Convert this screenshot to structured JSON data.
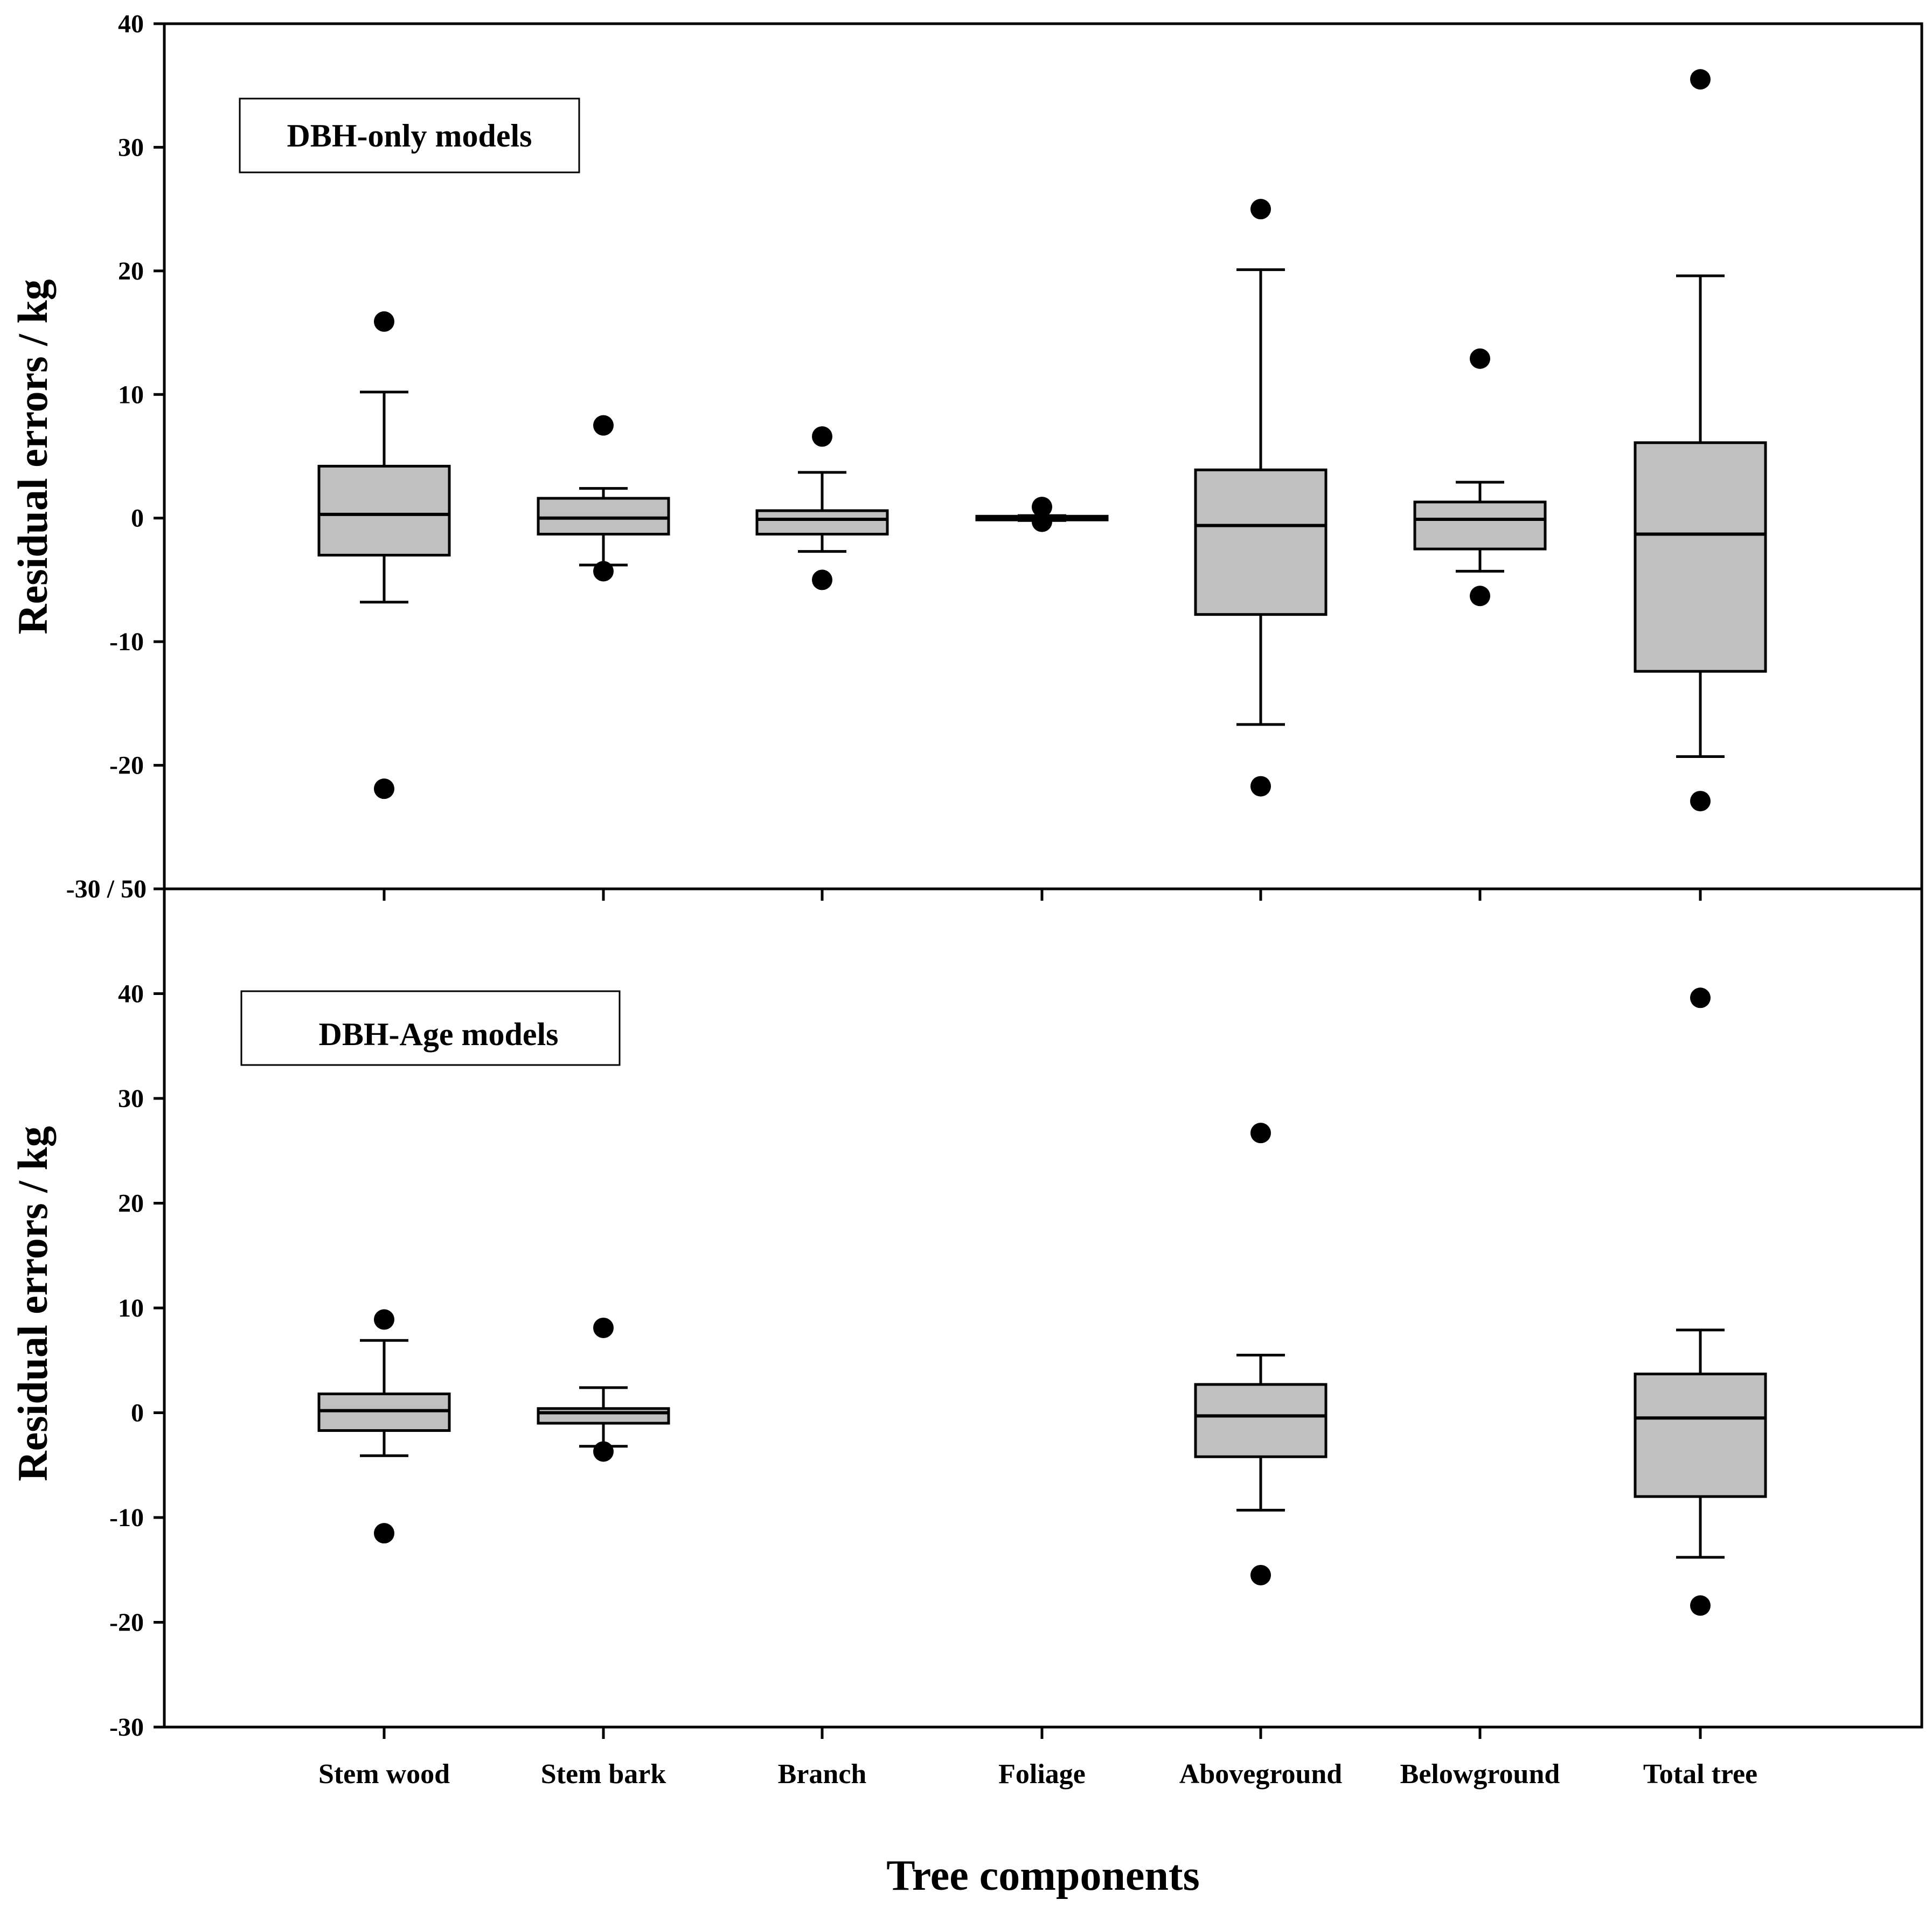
{
  "chart_data": [
    {
      "type": "box",
      "panel": "top",
      "label": "DBH-only models",
      "ylabel": "Residual errors / kg",
      "ylim": [
        -30,
        40
      ],
      "yticks": [
        "40",
        "30",
        "20",
        "10",
        "0",
        "-10",
        "-20"
      ],
      "shared_boundary_label": "-30 / 50",
      "categories": [
        "Stem wood",
        "Stem bark",
        "Branch",
        "Foliage",
        "Aboveground",
        "Belowground",
        "Total tree"
      ],
      "boxes": [
        {
          "category": "Stem wood",
          "q1": -3.0,
          "median": 0.3,
          "q3": 4.2,
          "whisker_low": -6.8,
          "whisker_high": 10.2,
          "outliers": [
            15.9,
            -21.9
          ]
        },
        {
          "category": "Stem bark",
          "q1": -1.3,
          "median": 0.0,
          "q3": 1.6,
          "whisker_low": -3.8,
          "whisker_high": 2.4,
          "outliers": [
            7.5,
            -4.3
          ]
        },
        {
          "category": "Branch",
          "q1": -1.3,
          "median": -0.1,
          "q3": 0.6,
          "whisker_low": -2.7,
          "whisker_high": 3.7,
          "outliers": [
            6.6,
            -5.0
          ]
        },
        {
          "category": "Foliage",
          "q1": -0.15,
          "median": 0.0,
          "q3": 0.15,
          "whisker_low": -0.2,
          "whisker_high": 0.2,
          "outliers": [
            0.9,
            -0.3
          ]
        },
        {
          "category": "Aboveground",
          "q1": -7.8,
          "median": -0.6,
          "q3": 3.9,
          "whisker_low": -16.7,
          "whisker_high": 20.1,
          "outliers": [
            25.0,
            -21.7
          ]
        },
        {
          "category": "Belowground",
          "q1": -2.5,
          "median": -0.1,
          "q3": 1.3,
          "whisker_low": -4.3,
          "whisker_high": 2.9,
          "outliers": [
            12.9,
            -6.3
          ]
        },
        {
          "category": "Total tree",
          "q1": -12.4,
          "median": -1.3,
          "q3": 6.1,
          "whisker_low": -19.3,
          "whisker_high": 19.6,
          "outliers": [
            35.5,
            -22.9
          ]
        }
      ]
    },
    {
      "type": "box",
      "panel": "bottom",
      "label": "DBH-Age models",
      "ylabel": "Residual errors / kg",
      "ylim": [
        -30,
        50
      ],
      "yticks": [
        "40",
        "30",
        "20",
        "10",
        "0",
        "-10",
        "-20",
        "-30"
      ],
      "categories": [
        "Stem wood",
        "Stem bark",
        "Branch",
        "Foliage",
        "Aboveground",
        "Belowground",
        "Total tree"
      ],
      "boxes": [
        {
          "category": "Stem wood",
          "q1": -1.7,
          "median": 0.2,
          "q3": 1.8,
          "whisker_low": -4.1,
          "whisker_high": 6.9,
          "outliers": [
            8.9,
            -11.5
          ]
        },
        {
          "category": "Stem bark",
          "q1": -1.0,
          "median": 0.0,
          "q3": 0.4,
          "whisker_low": -3.2,
          "whisker_high": 2.4,
          "outliers": [
            8.1,
            -3.7
          ]
        },
        {
          "category": "Aboveground",
          "q1": -4.2,
          "median": -0.3,
          "q3": 2.7,
          "whisker_low": -9.3,
          "whisker_high": 5.5,
          "outliers": [
            26.7,
            -15.5
          ]
        },
        {
          "category": "Total tree",
          "q1": -8.0,
          "median": -0.5,
          "q3": 3.7,
          "whisker_low": -13.8,
          "whisker_high": 7.9,
          "outliers": [
            39.6,
            -18.4
          ]
        }
      ]
    }
  ],
  "xlabel": "Tree components"
}
